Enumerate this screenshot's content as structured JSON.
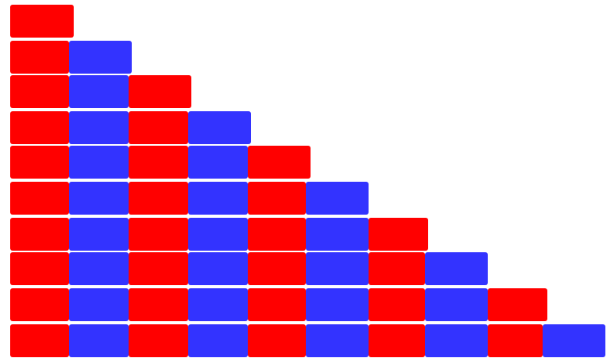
{
  "figure": {
    "kind": "staircase-blocks",
    "row_count": 10,
    "row_lengths": [
      1,
      2,
      3,
      4,
      5,
      6,
      7,
      8,
      9,
      10
    ],
    "color_pattern": [
      "red",
      "blue"
    ],
    "colors": {
      "red": "#ff0000",
      "blue": "#3333ff",
      "background": "#ffffff"
    }
  }
}
